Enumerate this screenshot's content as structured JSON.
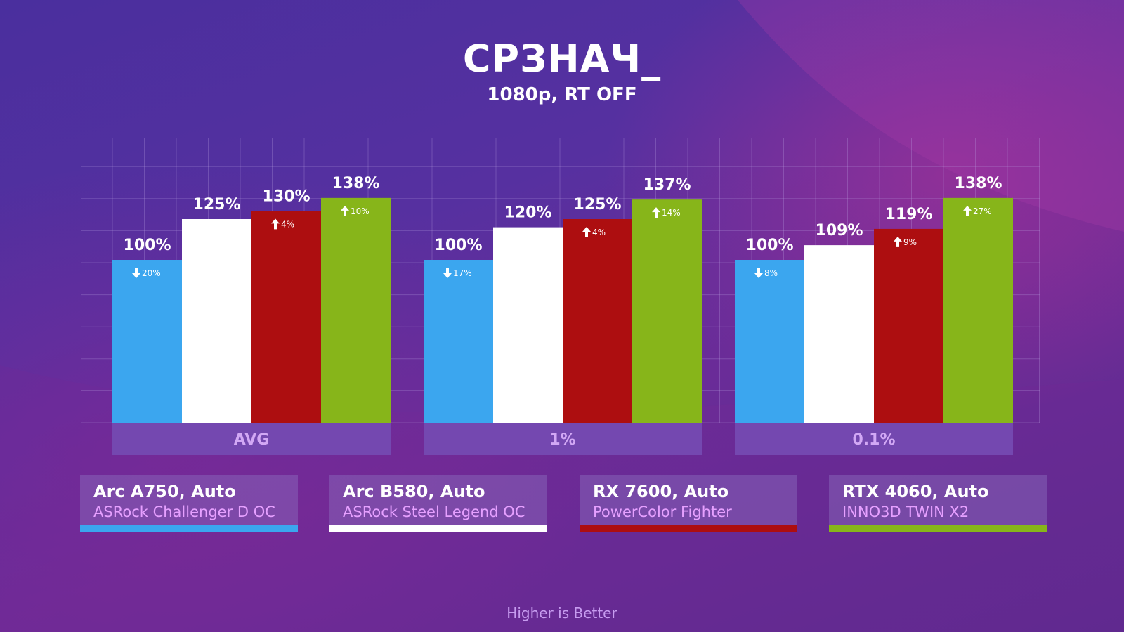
{
  "header": {
    "title": "СРЗНАЧ_",
    "subtitle": "1080p, RT OFF"
  },
  "footer": {
    "note": "Higher is Better"
  },
  "colors": {
    "arc_a750": "#3ba6ef",
    "arc_b580": "#ffffff",
    "rx_7600": "#ad0e10",
    "rtx_4060": "#87b51a",
    "group_band": "#7448b0",
    "group_label": "#d2a8f5"
  },
  "legend": [
    {
      "gpu": "Arc A750, Auto",
      "card": "ASRock Challenger D OC",
      "color": "#3ba6ef"
    },
    {
      "gpu": "Arc B580, Auto",
      "card": "ASRock Steel Legend OC",
      "color": "#ffffff"
    },
    {
      "gpu": "RX 7600, Auto",
      "card": "PowerColor Fighter",
      "color": "#ad0e10"
    },
    {
      "gpu": "RTX 4060, Auto",
      "card": "INNO3D TWIN X2",
      "color": "#87b51a"
    }
  ],
  "chart_data": {
    "type": "bar",
    "categories": [
      "AVG",
      "1%",
      "0.1%"
    ],
    "series": [
      {
        "name": "Arc A750, Auto",
        "values": [
          100,
          100,
          100
        ],
        "labels": [
          "100%",
          "100%",
          "100%"
        ],
        "delta": [
          "20%",
          "17%",
          "8%"
        ],
        "delta_dir": "down"
      },
      {
        "name": "Arc B580, Auto",
        "values": [
          125,
          120,
          109
        ],
        "labels": [
          "125%",
          "120%",
          "109%"
        ],
        "delta": null,
        "delta_dir": null
      },
      {
        "name": "RX 7600, Auto",
        "values": [
          130,
          125,
          119
        ],
        "labels": [
          "130%",
          "125%",
          "119%"
        ],
        "delta": [
          "4%",
          "4%",
          "9%"
        ],
        "delta_dir": "up"
      },
      {
        "name": "RTX 4060, Auto",
        "values": [
          138,
          137,
          138
        ],
        "labels": [
          "138%",
          "137%",
          "138%"
        ],
        "delta": [
          "10%",
          "14%",
          "27%"
        ],
        "delta_dir": "up"
      }
    ],
    "ylim": [
      0,
      150
    ],
    "grid": true,
    "legend_position": "bottom"
  }
}
